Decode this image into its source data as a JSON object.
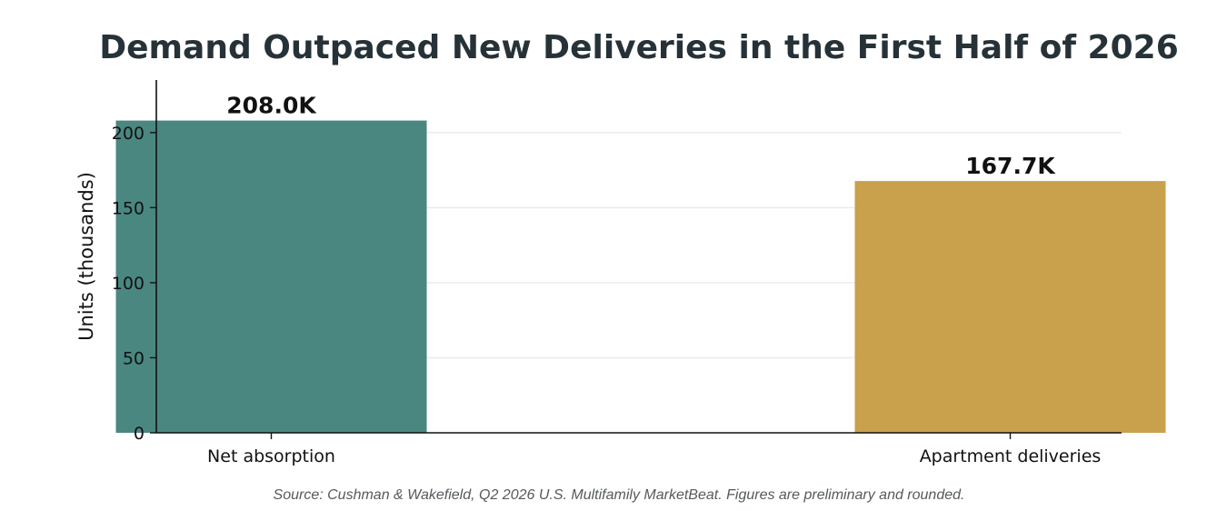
{
  "chart_data": {
    "type": "bar",
    "title": "Demand Outpaced New Deliveries in the First Half of 2026",
    "xlabel": "",
    "ylabel": "Units (thousands)",
    "categories": [
      "Net absorption",
      "Apartment deliveries"
    ],
    "values": [
      208.0,
      167.7
    ],
    "data_labels": [
      "208.0K",
      "167.7K"
    ],
    "colors": [
      "#4a8781",
      "#c9a04c"
    ],
    "ylim": [
      0,
      235
    ],
    "yticks": [
      0,
      50,
      100,
      150,
      200
    ],
    "grid": true,
    "legend": "none"
  },
  "footer": {
    "source": "Source: Cushman & Wakefield, Q2 2026 U.S. Multifamily MarketBeat. Figures are preliminary and rounded."
  }
}
